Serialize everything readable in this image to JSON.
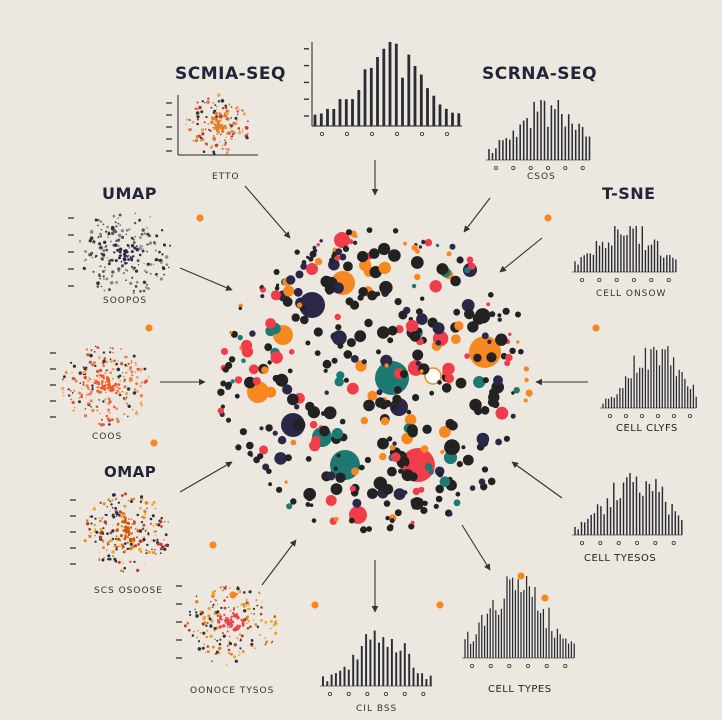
{
  "labels": {
    "scmia_seq": "SCMIA-SEQ",
    "scrna_seq": "SCRNA-SEQ",
    "umap": "UMAP",
    "tsne": "T-SNE",
    "omap": "OMAP",
    "cell_onsow": "CELL ONSOW",
    "cell_clyfs": "CELL CLYFS",
    "cell_tyesos": "CELL TYESOS",
    "cell_types": "CELL TYPES",
    "oonoce_tysos": "OONOCE TYSOS",
    "scs_osoose": "SCS OSOOSE",
    "scope": "SOOPOS",
    "cocs": "COOS",
    "ettto": "ETTO",
    "csos": "CSOS",
    "cil_bss": "CIL BSS"
  },
  "colors": {
    "background": "#ece8df",
    "navy": "#2b2748",
    "orange": "#f7871f",
    "red": "#ef3d4a",
    "teal": "#1d7a73",
    "dark": "#222222",
    "lavender": "#c9b7d1"
  },
  "icons": [
    "scatter-umap-icon",
    "scatter-tsne-icon",
    "histogram-icon",
    "arrow-icon"
  ]
}
